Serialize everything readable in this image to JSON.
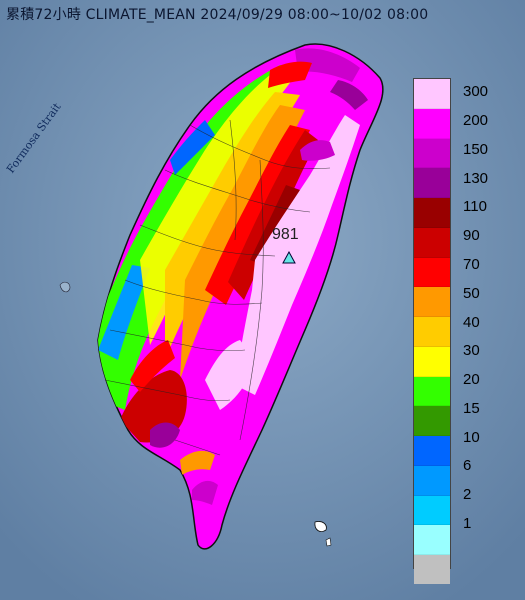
{
  "title": "累積72小時 CLIMATE_MEAN 2024/09/29 08:00~10/02 08:00",
  "strait_label": "Formosa Strait",
  "station": {
    "value": "981",
    "icon": "triangle-icon"
  },
  "legend": [
    {
      "label": "300",
      "color": "#ffc6ff"
    },
    {
      "label": "200",
      "color": "#ff00ff"
    },
    {
      "label": "150",
      "color": "#cc00cc"
    },
    {
      "label": "130",
      "color": "#990099"
    },
    {
      "label": "110",
      "color": "#990000"
    },
    {
      "label": "90",
      "color": "#cc0000"
    },
    {
      "label": "70",
      "color": "#ff0000"
    },
    {
      "label": "50",
      "color": "#ff9900"
    },
    {
      "label": "40",
      "color": "#ffcc00"
    },
    {
      "label": "30",
      "color": "#ffff00"
    },
    {
      "label": "20",
      "color": "#33ff00"
    },
    {
      "label": "15",
      "color": "#339900"
    },
    {
      "label": "10",
      "color": "#0066ff"
    },
    {
      "label": "6",
      "color": "#0099ff"
    },
    {
      "label": "2",
      "color": "#00ccff"
    },
    {
      "label": "1",
      "color": "#99ffff"
    },
    {
      "label": "",
      "color": "#c0c0c0"
    }
  ]
}
